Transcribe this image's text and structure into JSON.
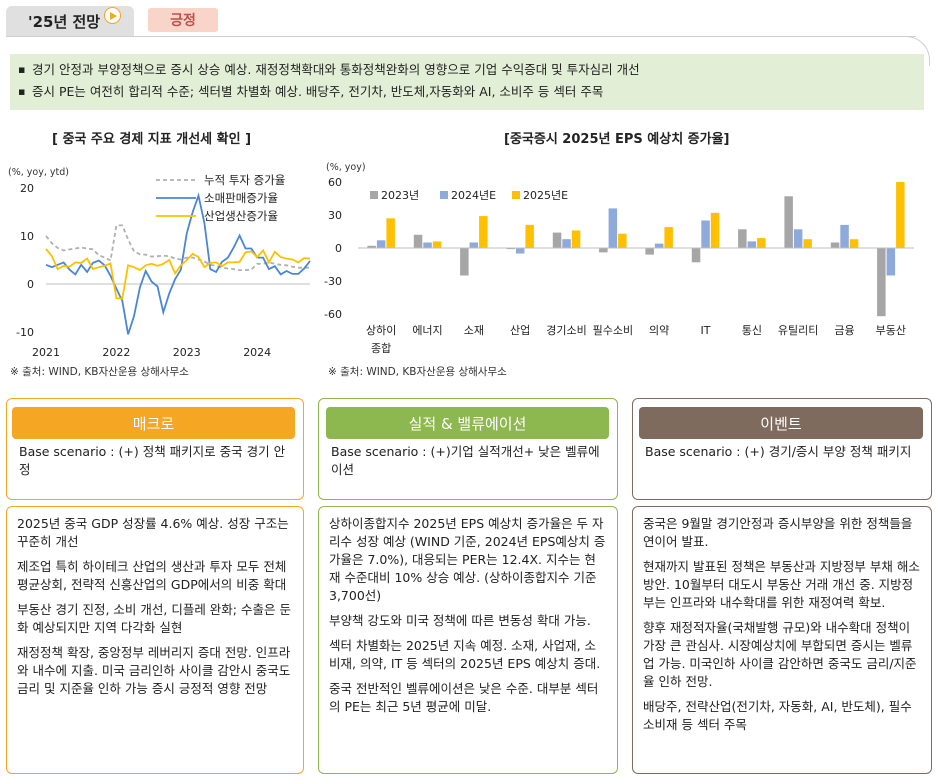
{
  "header": {
    "tab_label": "'25년 전망",
    "pill_label": "긍정"
  },
  "summary": [
    "경기 안정과 부양정책으로 증시 상승 예상. 재정정책확대와 통화정책완화의 영향으로 기업 수익증대 및 투자심리 개선",
    "증시 PE는 여전히 합리적 수준; 섹터별 차별화 예상. 배당주, 전기차, 반도체,자동화와 AI, 소비주 등 섹터 주목"
  ],
  "chart1": {
    "title": "[ 중국 주요 경제 지표 개선세 확인 ]",
    "unit": "(%, yoy, ytd)",
    "source": "※ 출처: WIND, KB자산운용 상해사무소"
  },
  "chart2": {
    "title": "[중국증시 2025년 EPS 예상치 증가율]",
    "unit": "(%, yoy)",
    "source": "※ 출처: WIND, KB자산운용 상해사무소"
  },
  "colors": {
    "gray": "#a6a6a6",
    "blue": "#8eaadb",
    "yellow": "#ffc000",
    "macro": "#f5a623",
    "earnings": "#8db74f",
    "event": "#7f6b5d",
    "summary_bg": "#e3eed6"
  },
  "chart_data": [
    {
      "type": "line",
      "x": [
        "2021-01",
        "2021-02",
        "2021-03",
        "2021-04",
        "2021-05",
        "2021-06",
        "2021-07",
        "2021-08",
        "2021-09",
        "2021-10",
        "2021-11",
        "2021-12",
        "2022-01",
        "2022-02",
        "2022-03",
        "2022-04",
        "2022-05",
        "2022-06",
        "2022-07",
        "2022-08",
        "2022-09",
        "2022-10",
        "2022-11",
        "2022-12",
        "2023-01",
        "2023-02",
        "2023-03",
        "2023-04",
        "2023-05",
        "2023-06",
        "2023-07",
        "2023-08",
        "2023-09",
        "2023-10",
        "2023-11",
        "2023-12",
        "2024-01",
        "2024-02",
        "2024-03",
        "2024-04",
        "2024-05",
        "2024-06",
        "2024-07",
        "2024-08",
        "2024-09",
        "2024-10"
      ],
      "xticks": [
        "2021",
        "2022",
        "2023",
        "2024"
      ],
      "ylim": [
        -10,
        20
      ],
      "yticks": [
        -10,
        0,
        10,
        20
      ],
      "series": [
        {
          "name": "누적 투자 증가율",
          "style": "dashed",
          "color": "#b0b0b0",
          "values": [
            10.0,
            8.5,
            7.5,
            7.0,
            7.2,
            7.4,
            7.6,
            7.4,
            7.2,
            6.0,
            5.5,
            4.9,
            12.2,
            12.2,
            9.3,
            6.8,
            6.2,
            6.1,
            5.7,
            5.8,
            5.9,
            5.8,
            5.3,
            5.1,
            5.5,
            5.5,
            5.1,
            4.7,
            4.0,
            3.8,
            3.4,
            3.2,
            3.1,
            2.9,
            2.9,
            3.0,
            4.2,
            4.2,
            4.5,
            4.2,
            4.0,
            3.9,
            3.6,
            3.4,
            3.4,
            3.4
          ]
        },
        {
          "name": "소매판매증가율",
          "style": "solid",
          "color": "#4a86d8",
          "values": [
            4.0,
            3.5,
            4.0,
            4.5,
            3.0,
            2.0,
            4.0,
            2.5,
            4.4,
            4.9,
            3.9,
            1.7,
            -1.0,
            -3.5,
            -10.5,
            -6.7,
            -0.7,
            2.7,
            0.5,
            -0.5,
            -5.9,
            -2.0,
            1.0,
            3.0,
            10.6,
            15.0,
            18.4,
            12.7,
            3.1,
            2.5,
            4.6,
            5.5,
            7.6,
            10.1,
            7.4,
            7.4,
            5.5,
            5.5,
            3.1,
            3.7,
            2.0,
            2.7,
            2.1,
            2.1,
            3.2,
            4.8
          ]
        },
        {
          "name": "산업생산증가율",
          "style": "solid",
          "color": "#ffc000",
          "values": [
            7.3,
            5.8,
            3.1,
            3.8,
            3.6,
            4.5,
            4.4,
            5.3,
            3.1,
            3.5,
            3.8,
            4.3,
            -3.0,
            -3.0,
            3.9,
            3.5,
            2.9,
            3.9,
            4.2,
            3.8,
            4.2,
            5.0,
            2.2,
            3.9,
            5.0,
            6.3,
            5.6,
            3.5,
            4.4,
            4.5,
            3.7,
            4.5,
            4.5,
            4.6,
            6.6,
            6.8,
            5.6,
            7.0,
            4.5,
            6.7,
            5.6,
            5.3,
            5.1,
            4.5,
            5.4,
            5.3
          ]
        }
      ]
    },
    {
      "type": "bar",
      "categories": [
        "상하이\n종합",
        "에너지",
        "소재",
        "산업",
        "경기소비",
        "필수소비",
        "의약",
        "IT",
        "통신",
        "유틸리티",
        "금융",
        "부동산"
      ],
      "ylim": [
        -60,
        60
      ],
      "yticks": [
        60,
        30,
        0,
        -30,
        -60
      ],
      "legend_position": "top-left",
      "series": [
        {
          "name": "2023년",
          "color": "#a6a6a6",
          "values": [
            2,
            12,
            -25,
            -1,
            14,
            -4,
            -6,
            -13,
            17,
            47,
            5,
            -62
          ]
        },
        {
          "name": "2024년E",
          "color": "#8eaadb",
          "values": [
            7,
            5,
            5,
            -5,
            8,
            36,
            4,
            25,
            6,
            17,
            21,
            -25
          ]
        },
        {
          "name": "2025년E",
          "color": "#ffc000",
          "values": [
            27,
            6,
            29,
            21,
            16,
            13,
            19,
            32,
            9,
            8,
            8,
            60
          ]
        }
      ]
    }
  ],
  "columns": [
    {
      "header": "매크로",
      "scenario": "Base scenario : (+) 정책 패키지로 중국 경기 안정",
      "details": [
        "2025년 중국 GDP 성장률 4.6% 예상. 성장 구조는 꾸준히 개선",
        "제조업 특히 하이테크 산업의 생산과 투자 모두 전체 평균상회, 전략적 신흥산업의 GDP에서의 비중 확대",
        "부동산 경기 진정, 소비 개선, 디플레 완화; 수출은 둔화 예상되지만 지역 다각화 실현",
        "재정정책 확장, 중앙정부 레버리지 증대 전망. 인프라와 내수에 지출. 미국 금리인하 사이클 감안시 중국도 금리 및 지준율 인하 가능 증시 긍정적 영향 전망"
      ]
    },
    {
      "header": "실적 & 밸류에이션",
      "scenario": "Base scenario : (+)기업 실적개선+ 낮은 벨류에이션",
      "details": [
        "상하이종합지수 2025년 EPS 예상치 증가율은 두 자리수 성장 예상 (WIND 기준, 2024년 EPS예상치 증가율은 7.0%), 대응되는 PER는 12.4X. 지수는 현재 수준대비 10% 상승 예상. (상하이종합지수 기준 3,700선)",
        "부양책 강도와 미국 정책에 따른 변동성 확대 가능.",
        "섹터 차별화는 2025년 지속 예정. 소재, 사업재, 소비재, 의약, IT 등 섹터의 2025년 EPS 예상치 증대.",
        "중국 전반적인 벨류에이션은 낮은 수준. 대부분 섹터의 PE는 최근 5년 평균에 미달."
      ]
    },
    {
      "header": "이벤트",
      "scenario": "Base scenario : (+) 경기/증시 부양 정책 패키지",
      "details": [
        "중국은 9월말 경기안정과 증시부양을 위한 정책들을 연이어 발표.",
        "현재까지 발표된 정책은 부동산과 지방정부 부채 해소 방안. 10월부터 대도시 부동산 거래 개선 중. 지방정부는 인프라와 내수확대를 위한 재정여력 확보.",
        "향후 재정적자율(국채발행 규모)와 내수확대 정책이 가장 큰 관심사. 시장예상치에 부합되면 증시는 벨류업 가능. 미국인하 사이클 감안하면 중국도 금리/지준율 인하 전망.",
        "배당주, 전략산업(전기차, 자동화, AI, 반도체), 필수소비재 등 섹터 주목"
      ]
    }
  ]
}
